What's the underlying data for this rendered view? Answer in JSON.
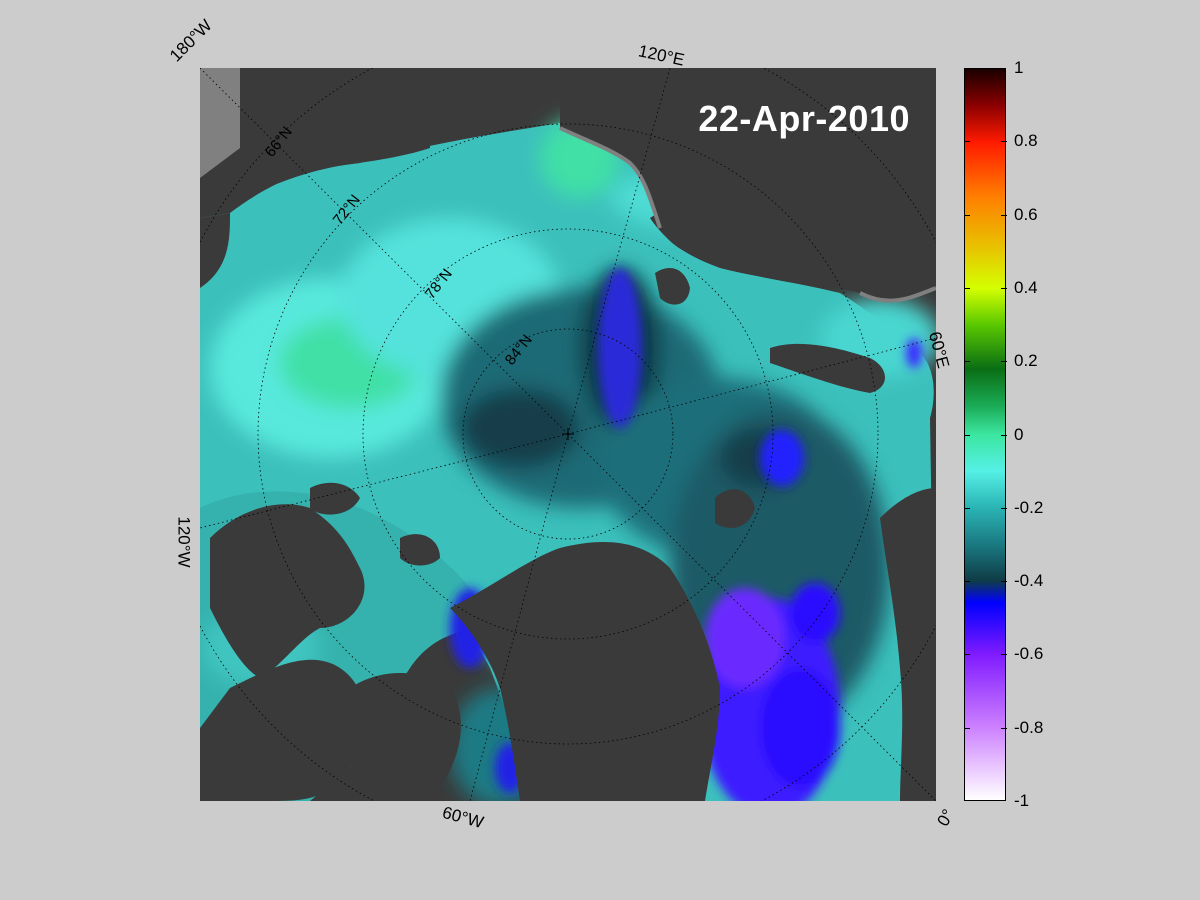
{
  "date": "22-Apr-2010",
  "edge_labels": {
    "top_left": "180°W",
    "top": "120°E",
    "right": "60°E",
    "left": "120°W",
    "bottom": "60°W",
    "bottom_right": "0°"
  },
  "lat_labels": [
    "66°N",
    "72°N",
    "78°N",
    "84°N"
  ],
  "colorbar": {
    "min": -1,
    "max": 1,
    "ticks": [
      "1",
      "0.8",
      "0.6",
      "0.4",
      "0.2",
      "0",
      "-0.2",
      "-0.4",
      "-0.6",
      "-0.8",
      "-1"
    ],
    "stops": [
      {
        "v": 1.0,
        "c": "#1a0000"
      },
      {
        "v": 0.9,
        "c": "#8b0000"
      },
      {
        "v": 0.8,
        "c": "#ff1a00"
      },
      {
        "v": 0.65,
        "c": "#ff7f00"
      },
      {
        "v": 0.5,
        "c": "#e6c800"
      },
      {
        "v": 0.4,
        "c": "#d4ff00"
      },
      {
        "v": 0.3,
        "c": "#5ac800"
      },
      {
        "v": 0.18,
        "c": "#0a6e14"
      },
      {
        "v": 0.08,
        "c": "#1aaa55"
      },
      {
        "v": 0.0,
        "c": "#3ce6a0"
      },
      {
        "v": -0.1,
        "c": "#55f0e6"
      },
      {
        "v": -0.2,
        "c": "#2ab4b4"
      },
      {
        "v": -0.3,
        "c": "#1a7a82"
      },
      {
        "v": -0.4,
        "c": "#0f3c46"
      },
      {
        "v": -0.46,
        "c": "#0000ff"
      },
      {
        "v": -0.6,
        "c": "#7f1aff"
      },
      {
        "v": -0.8,
        "c": "#cc80ff"
      },
      {
        "v": -1.0,
        "c": "#ffffff"
      }
    ]
  },
  "colors": {
    "land": "#3a3a3a",
    "coast_shelf": "#808080",
    "background": "#cccccc",
    "graticule": "#000000"
  }
}
